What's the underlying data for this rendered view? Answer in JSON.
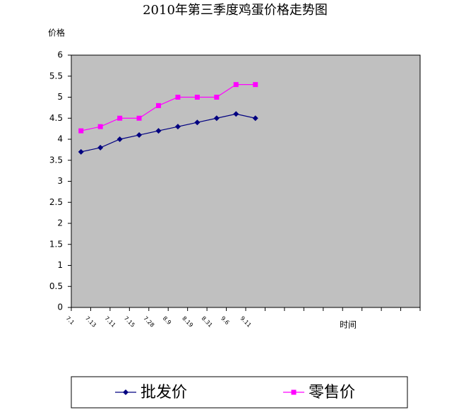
{
  "chart_data": {
    "type": "line",
    "title": "2010年第三季度鸡蛋价格走势图",
    "y_label": "价格",
    "x_label": "时间",
    "categories": [
      "7.1",
      "7.13",
      "7.11",
      "7.15",
      "7.28",
      "8.9",
      "8.19",
      "8.31",
      "9.6",
      "9.11",
      null,
      null,
      null,
      null,
      null,
      null,
      null,
      null
    ],
    "series": [
      {
        "name": "批发价",
        "color": "#000080",
        "marker": "diamond",
        "values": [
          3.7,
          3.8,
          4.0,
          4.1,
          4.2,
          4.3,
          4.4,
          4.5,
          4.6,
          4.5,
          null,
          null,
          null,
          null,
          null,
          null,
          null,
          null
        ]
      },
      {
        "name": "零售价",
        "color": "#ff00ff",
        "marker": "square",
        "values": [
          4.2,
          4.3,
          4.5,
          4.5,
          4.8,
          5.0,
          5.0,
          5.0,
          5.3,
          5.3,
          null,
          null,
          null,
          null,
          null,
          null,
          null,
          null
        ]
      }
    ],
    "ylim": [
      0,
      6
    ],
    "yticks": [
      0,
      0.5,
      1,
      1.5,
      2,
      2.5,
      3,
      3.5,
      4,
      4.5,
      5,
      5.5,
      6
    ],
    "background": "#c0c0c0",
    "legend": "bottom"
  }
}
